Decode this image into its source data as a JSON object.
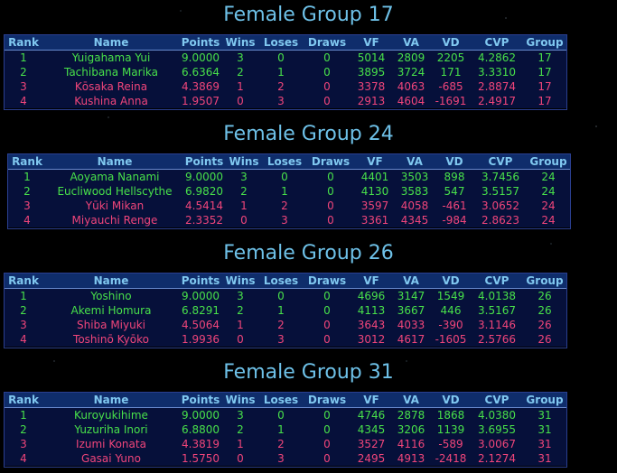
{
  "columns": [
    "Rank",
    "Name",
    "Points",
    "Wins",
    "Loses",
    "Draws",
    "VF",
    "VA",
    "VD",
    "CVP",
    "Group"
  ],
  "colors": {
    "title": "#6ec1e8",
    "header_bg": "#0f2d6b",
    "header_text": "#80c8f0",
    "qualified": "#48e04a",
    "eliminated": "#f0457a"
  },
  "groups": [
    {
      "title": "Female Group 17",
      "rows": [
        [
          "1",
          "Yuigahama Yui",
          "9.0000",
          "3",
          "0",
          "0",
          "5014",
          "2809",
          "2205",
          "4.2862",
          "17"
        ],
        [
          "2",
          "Tachibana Marika",
          "6.6364",
          "2",
          "1",
          "0",
          "3895",
          "3724",
          "171",
          "3.3310",
          "17"
        ],
        [
          "3",
          "Kōsaka Reina",
          "4.3869",
          "1",
          "2",
          "0",
          "3378",
          "4063",
          "-685",
          "2.8874",
          "17"
        ],
        [
          "4",
          "Kushina Anna",
          "1.9507",
          "0",
          "3",
          "0",
          "2913",
          "4604",
          "-1691",
          "2.4917",
          "17"
        ]
      ]
    },
    {
      "title": "Female Group 24",
      "rows": [
        [
          "1",
          "Aoyama Nanami",
          "9.0000",
          "3",
          "0",
          "0",
          "4401",
          "3503",
          "898",
          "3.7456",
          "24"
        ],
        [
          "2",
          "Eucliwood Hellscythe",
          "6.9820",
          "2",
          "1",
          "0",
          "4130",
          "3583",
          "547",
          "3.5157",
          "24"
        ],
        [
          "3",
          "Yūki Mikan",
          "4.5414",
          "1",
          "2",
          "0",
          "3597",
          "4058",
          "-461",
          "3.0652",
          "24"
        ],
        [
          "4",
          "Miyauchi Renge",
          "2.3352",
          "0",
          "3",
          "0",
          "3361",
          "4345",
          "-984",
          "2.8623",
          "24"
        ]
      ]
    },
    {
      "title": "Female Group 26",
      "rows": [
        [
          "1",
          "Yoshino",
          "9.0000",
          "3",
          "0",
          "0",
          "4696",
          "3147",
          "1549",
          "4.0138",
          "26"
        ],
        [
          "2",
          "Akemi Homura",
          "6.8291",
          "2",
          "1",
          "0",
          "4113",
          "3667",
          "446",
          "3.5167",
          "26"
        ],
        [
          "3",
          "Shiba Miyuki",
          "4.5064",
          "1",
          "2",
          "0",
          "3643",
          "4033",
          "-390",
          "3.1146",
          "26"
        ],
        [
          "4",
          "Toshinō Kyōko",
          "1.9936",
          "0",
          "3",
          "0",
          "3012",
          "4617",
          "-1605",
          "2.5766",
          "26"
        ]
      ]
    },
    {
      "title": "Female Group 31",
      "rows": [
        [
          "1",
          "Kuroyukihime",
          "9.0000",
          "3",
          "0",
          "0",
          "4746",
          "2878",
          "1868",
          "4.0380",
          "31"
        ],
        [
          "2",
          "Yuzuriha Inori",
          "6.8800",
          "2",
          "1",
          "0",
          "4345",
          "3206",
          "1139",
          "3.6955",
          "31"
        ],
        [
          "3",
          "Izumi Konata",
          "4.3819",
          "1",
          "2",
          "0",
          "3527",
          "4116",
          "-589",
          "3.0067",
          "31"
        ],
        [
          "4",
          "Gasai Yuno",
          "1.5750",
          "0",
          "3",
          "0",
          "2495",
          "4913",
          "-2418",
          "2.1274",
          "31"
        ]
      ]
    }
  ]
}
